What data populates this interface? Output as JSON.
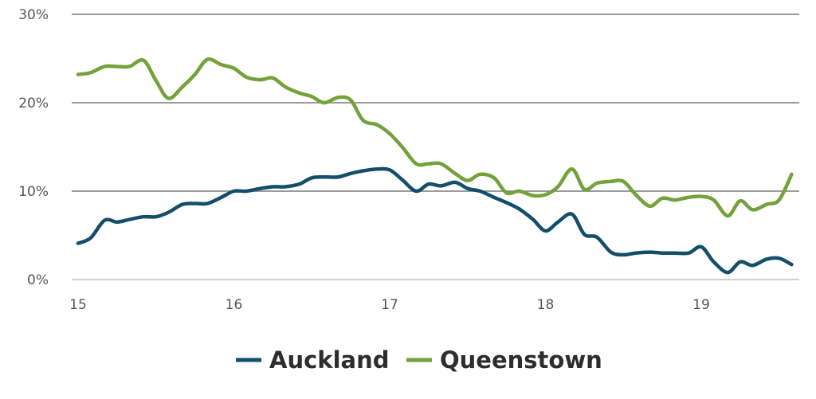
{
  "chart_data": {
    "type": "line",
    "title": "",
    "xlabel": "",
    "ylabel": "",
    "xlim": [
      15,
      19.6
    ],
    "ylim": [
      0,
      30
    ],
    "x_ticks": [
      15,
      16,
      17,
      18,
      19
    ],
    "x_tick_labels": [
      "15",
      "16",
      "17",
      "18",
      "19"
    ],
    "y_ticks": [
      0,
      10,
      20,
      30
    ],
    "y_tick_labels": [
      "0%",
      "10%",
      "20%",
      "30%"
    ],
    "grid": "horizontal",
    "legend": "bottom-center",
    "series": [
      {
        "name": "Auckland",
        "color": "#134e6a",
        "points": [
          [
            15.0,
            4.1
          ],
          [
            15.08,
            4.7
          ],
          [
            15.17,
            6.7
          ],
          [
            15.25,
            6.5
          ],
          [
            15.33,
            6.8
          ],
          [
            15.42,
            7.1
          ],
          [
            15.5,
            7.1
          ],
          [
            15.58,
            7.6
          ],
          [
            15.67,
            8.5
          ],
          [
            15.75,
            8.6
          ],
          [
            15.83,
            8.6
          ],
          [
            15.92,
            9.3
          ],
          [
            16.0,
            10.0
          ],
          [
            16.08,
            10.0
          ],
          [
            16.17,
            10.3
          ],
          [
            16.25,
            10.5
          ],
          [
            16.33,
            10.5
          ],
          [
            16.42,
            10.8
          ],
          [
            16.5,
            11.5
          ],
          [
            16.58,
            11.6
          ],
          [
            16.67,
            11.6
          ],
          [
            16.75,
            12.0
          ],
          [
            16.83,
            12.3
          ],
          [
            16.92,
            12.5
          ],
          [
            17.0,
            12.4
          ],
          [
            17.08,
            11.3
          ],
          [
            17.17,
            10.0
          ],
          [
            17.25,
            10.8
          ],
          [
            17.33,
            10.6
          ],
          [
            17.42,
            11.0
          ],
          [
            17.5,
            10.3
          ],
          [
            17.58,
            10.0
          ],
          [
            17.67,
            9.3
          ],
          [
            17.75,
            8.7
          ],
          [
            17.83,
            8.0
          ],
          [
            17.92,
            6.8
          ],
          [
            18.0,
            5.5
          ],
          [
            18.08,
            6.5
          ],
          [
            18.17,
            7.4
          ],
          [
            18.25,
            5.1
          ],
          [
            18.33,
            4.8
          ],
          [
            18.42,
            3.1
          ],
          [
            18.5,
            2.8
          ],
          [
            18.58,
            3.0
          ],
          [
            18.67,
            3.1
          ],
          [
            18.75,
            3.0
          ],
          [
            18.83,
            3.0
          ],
          [
            18.92,
            3.0
          ],
          [
            19.0,
            3.7
          ],
          [
            19.08,
            2.0
          ],
          [
            19.17,
            0.8
          ],
          [
            19.25,
            2.0
          ],
          [
            19.33,
            1.6
          ],
          [
            19.42,
            2.3
          ],
          [
            19.5,
            2.4
          ],
          [
            19.58,
            1.7
          ]
        ]
      },
      {
        "name": "Queenstown",
        "color": "#73a13a",
        "points": [
          [
            15.0,
            23.2
          ],
          [
            15.08,
            23.4
          ],
          [
            15.17,
            24.1
          ],
          [
            15.25,
            24.1
          ],
          [
            15.33,
            24.1
          ],
          [
            15.42,
            24.8
          ],
          [
            15.5,
            22.5
          ],
          [
            15.58,
            20.5
          ],
          [
            15.67,
            21.8
          ],
          [
            15.75,
            23.2
          ],
          [
            15.83,
            24.9
          ],
          [
            15.92,
            24.3
          ],
          [
            16.0,
            23.9
          ],
          [
            16.08,
            22.9
          ],
          [
            16.17,
            22.6
          ],
          [
            16.25,
            22.8
          ],
          [
            16.33,
            21.8
          ],
          [
            16.42,
            21.1
          ],
          [
            16.5,
            20.7
          ],
          [
            16.58,
            20.0
          ],
          [
            16.67,
            20.6
          ],
          [
            16.75,
            20.3
          ],
          [
            16.83,
            18.0
          ],
          [
            16.92,
            17.5
          ],
          [
            17.0,
            16.5
          ],
          [
            17.08,
            15.0
          ],
          [
            17.17,
            13.1
          ],
          [
            17.25,
            13.1
          ],
          [
            17.33,
            13.1
          ],
          [
            17.42,
            12.0
          ],
          [
            17.5,
            11.2
          ],
          [
            17.58,
            11.9
          ],
          [
            17.67,
            11.5
          ],
          [
            17.75,
            9.8
          ],
          [
            17.83,
            10.0
          ],
          [
            17.92,
            9.5
          ],
          [
            18.0,
            9.6
          ],
          [
            18.08,
            10.5
          ],
          [
            18.17,
            12.5
          ],
          [
            18.25,
            10.2
          ],
          [
            18.33,
            10.9
          ],
          [
            18.42,
            11.1
          ],
          [
            18.5,
            11.1
          ],
          [
            18.58,
            9.6
          ],
          [
            18.67,
            8.3
          ],
          [
            18.75,
            9.2
          ],
          [
            18.83,
            9.0
          ],
          [
            18.92,
            9.3
          ],
          [
            19.0,
            9.4
          ],
          [
            19.08,
            9.0
          ],
          [
            19.17,
            7.2
          ],
          [
            19.25,
            8.9
          ],
          [
            19.33,
            7.9
          ],
          [
            19.42,
            8.5
          ],
          [
            19.5,
            9.0
          ],
          [
            19.58,
            11.9
          ]
        ]
      }
    ]
  }
}
